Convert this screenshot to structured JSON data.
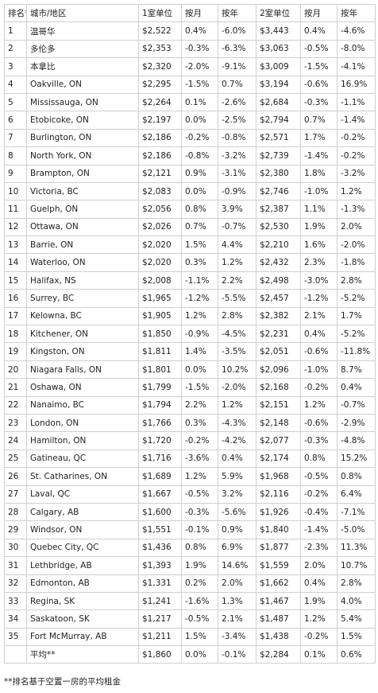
{
  "table": {
    "headers": [
      "排名**",
      "城市/地区",
      "1室单位",
      "按月",
      "按年",
      "2室单位",
      "按月",
      "按年"
    ],
    "rows": [
      [
        "1",
        "温哥华",
        "$2,522",
        "0.4%",
        "-6.0%",
        "$3,443",
        "0.4%",
        "-4.6%"
      ],
      [
        "2",
        "多伦多",
        "$2,353",
        "-0.3%",
        "-6.3%",
        "$3,063",
        "-0.5%",
        "-8.0%"
      ],
      [
        "3",
        "本拿比",
        "$2,320",
        "-2.0%",
        "-9.1%",
        "$3,009",
        "-1.5%",
        "-4.1%"
      ],
      [
        "4",
        "Oakville, ON",
        "$2,295",
        "-1.5%",
        "0.7%",
        "$3,194",
        "-0.6%",
        "16.9%"
      ],
      [
        "5",
        "Mississauga, ON",
        "$2,264",
        "0.1%",
        "-2.6%",
        "$2,684",
        "-0.3%",
        "-1.1%"
      ],
      [
        "6",
        "Etobicoke, ON",
        "$2,197",
        "0.0%",
        "-2.5%",
        "$2,794",
        "0.7%",
        "-1.4%"
      ],
      [
        "7",
        "Burlington, ON",
        "$2,186",
        "-0.2%",
        "-0.8%",
        "$2,571",
        "1.7%",
        "-0.2%"
      ],
      [
        "8",
        "North York, ON",
        "$2,186",
        "-0.8%",
        "-3.2%",
        "$2,739",
        "-1.4%",
        "-0.2%"
      ],
      [
        "9",
        "Brampton, ON",
        "$2,121",
        "0.9%",
        "-3.1%",
        "$2,380",
        "1.8%",
        "-3.2%"
      ],
      [
        "10",
        "Victoria, BC",
        "$2,083",
        "0.0%",
        "-0.9%",
        "$2,746",
        "-1.0%",
        "1.2%"
      ],
      [
        "11",
        "Guelph, ON",
        "$2,056",
        "0.8%",
        "3.9%",
        "$2,387",
        "1.1%",
        "-1.3%"
      ],
      [
        "12",
        "Ottawa, ON",
        "$2,026",
        "0.7%",
        "-0.7%",
        "$2,530",
        "1.9%",
        "2.0%"
      ],
      [
        "13",
        "Barrie, ON",
        "$2,020",
        "1.5%",
        "4.4%",
        "$2,210",
        "1.6%",
        "-2.0%"
      ],
      [
        "14",
        "Waterloo, ON",
        "$2,020",
        "0.3%",
        "1.2%",
        "$2,432",
        "2.3%",
        "-1.8%"
      ],
      [
        "15",
        "Halifax, NS",
        "$2,008",
        "-1.1%",
        "2.2%",
        "$2,498",
        "-3.0%",
        "2.8%"
      ],
      [
        "16",
        "Surrey, BC",
        "$1,965",
        "-1.2%",
        "-5.5%",
        "$2,457",
        "-1.2%",
        "-5.2%"
      ],
      [
        "17",
        "Kelowna, BC",
        "$1,905",
        "1.2%",
        "2.8%",
        "$2,382",
        "2.1%",
        "1.7%"
      ],
      [
        "18",
        "Kitchener, ON",
        "$1,850",
        "-0.9%",
        "-4.5%",
        "$2,231",
        "0.4%",
        "-5.2%"
      ],
      [
        "19",
        "Kingston, ON",
        "$1,811",
        "1.4%",
        "-3.5%",
        "$2,051",
        "-0.6%",
        "-11.8%"
      ],
      [
        "20",
        "Niagara Falls, ON",
        "$1,801",
        "0.0%",
        "10.2%",
        "$2,096",
        "-1.0%",
        "8.7%"
      ],
      [
        "21",
        "Oshawa, ON",
        "$1,799",
        "-1.5%",
        "-2.0%",
        "$2,168",
        "-0.2%",
        "0.4%"
      ],
      [
        "22",
        "Nanaimo, BC",
        "$1,794",
        "2.2%",
        "1.2%",
        "$2,151",
        "1.2%",
        "-0.7%"
      ],
      [
        "23",
        "London, ON",
        "$1,766",
        "0.3%",
        "-4.3%",
        "$2,148",
        "-0.6%",
        "-2.9%"
      ],
      [
        "24",
        "Hamilton, ON",
        "$1,720",
        "-0.2%",
        "-4.2%",
        "$2,077",
        "-0.3%",
        "-4.8%"
      ],
      [
        "25",
        "Gatineau, QC",
        "$1,716",
        "-3.6%",
        "0.4%",
        "$2,174",
        "0.8%",
        "15.2%"
      ],
      [
        "26",
        "St. Catharines, ON",
        "$1,689",
        "1.2%",
        "5.9%",
        "$1,968",
        "-0.5%",
        "0.8%"
      ],
      [
        "27",
        "Laval, QC",
        "$1,667",
        "-0.5%",
        "3.2%",
        "$2,116",
        "-0.2%",
        "6.4%"
      ],
      [
        "28",
        "Calgary, AB",
        "$1,600",
        "-0.3%",
        "-5.6%",
        "$1,926",
        "-0.4%",
        "-7.1%"
      ],
      [
        "29",
        "Windsor, ON",
        "$1,551",
        "-0.1%",
        "0.9%",
        "$1,840",
        "-1.4%",
        "-5.0%"
      ],
      [
        "30",
        "Quebec City, QC",
        "$1,436",
        "0.8%",
        "6.9%",
        "$1,877",
        "-2.3%",
        "11.3%"
      ],
      [
        "31",
        "Lethbridge, AB",
        "$1,393",
        "1.9%",
        "14.6%",
        "$1,559",
        "2.0%",
        "10.7%"
      ],
      [
        "32",
        "Edmonton, AB",
        "$1,331",
        "0.2%",
        "2.0%",
        "$1,662",
        "0.4%",
        "2.8%"
      ],
      [
        "33",
        "Regina, SK",
        "$1,241",
        "-1.6%",
        "1.3%",
        "$1,467",
        "1.9%",
        "4.0%"
      ],
      [
        "34",
        "Saskatoon, SK",
        "$1,217",
        "-0.5%",
        "2.1%",
        "$1,487",
        "1.2%",
        "5.4%"
      ],
      [
        "35",
        "Fort McMurray, AB",
        "$1,211",
        "1.5%",
        "-3.4%",
        "$1,438",
        "-0.2%",
        "1.5%"
      ],
      [
        "",
        "平均**",
        "$1,860",
        "0.0%",
        "-0.1%",
        "$2,284",
        "0.1%",
        "0.6%"
      ]
    ]
  },
  "footnote": "**排名基于空置一房的平均租金"
}
